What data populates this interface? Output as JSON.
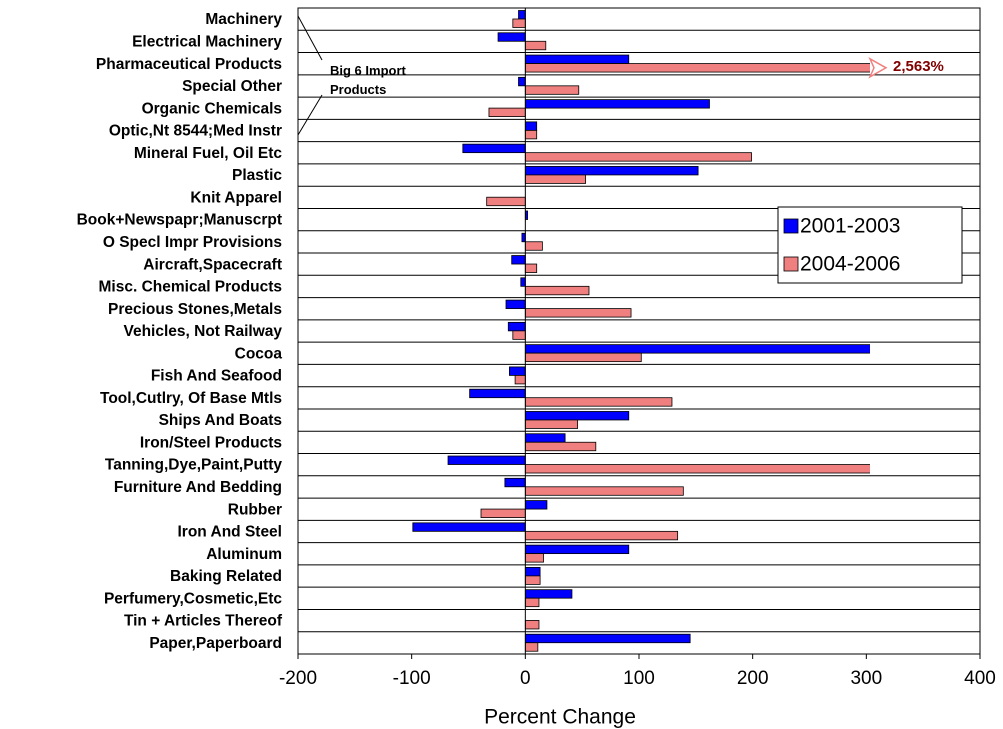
{
  "chart_data": {
    "type": "bar",
    "orientation": "horizontal",
    "categories": [
      "Machinery",
      "Electrical Machinery",
      "Pharmaceutical Products",
      "Special Other",
      "Organic Chemicals",
      "Optic,Nt 8544;Med Instr",
      "Mineral Fuel, Oil Etc",
      "Plastic",
      "Knit Apparel",
      "Book+Newspapr;Manuscrpt",
      "O Specl Impr Provisions",
      "Aircraft,Spacecraft",
      "Misc. Chemical Products",
      "Precious Stones,Metals",
      "Vehicles, Not Railway",
      "Cocoa",
      "Fish And Seafood",
      "Tool,Cutlry, Of Base Mtls",
      "Ships And Boats",
      "Iron/Steel Products",
      "Tanning,Dye,Paint,Putty",
      "Furniture And Bedding",
      "Rubber",
      "Iron And Steel",
      "Aluminum",
      "Baking Related",
      "Perfumery,Cosmetic,Etc",
      "Tin + Articles Thereof",
      "Paper,Paperboard"
    ],
    "series": [
      {
        "name": "2001-2003",
        "color": "#0000ff",
        "values": [
          -6,
          -24,
          91,
          -6,
          162,
          10,
          -55,
          152,
          0,
          2,
          -3,
          -12,
          -4,
          -17,
          -15,
          329,
          -14,
          -49,
          91,
          35,
          -68,
          -18,
          19,
          -99,
          91,
          13,
          41,
          0,
          145
        ]
      },
      {
        "name": "2004-2006",
        "color": "#f08080",
        "values": [
          -11,
          18,
          2563,
          47,
          -32,
          10,
          199,
          53,
          -34,
          0,
          15,
          10,
          56,
          93,
          -11,
          102,
          -9,
          129,
          46,
          62,
          341,
          139,
          -39,
          134,
          16,
          13,
          12,
          12,
          11
        ],
        "value_labels": [
          null,
          null,
          "2,563%",
          null,
          null,
          null,
          null,
          null,
          null,
          null,
          null,
          null,
          null,
          null,
          null,
          null,
          null,
          null,
          null,
          null,
          null,
          null,
          null,
          null,
          null,
          null,
          null,
          null,
          null
        ]
      }
    ],
    "annotation": "Big 6 Import Products",
    "x_label": "Percent Change",
    "xlim": [
      -200,
      400
    ],
    "xticks": [
      -200,
      -100,
      0,
      100,
      200,
      300,
      400
    ],
    "legend": "right"
  }
}
